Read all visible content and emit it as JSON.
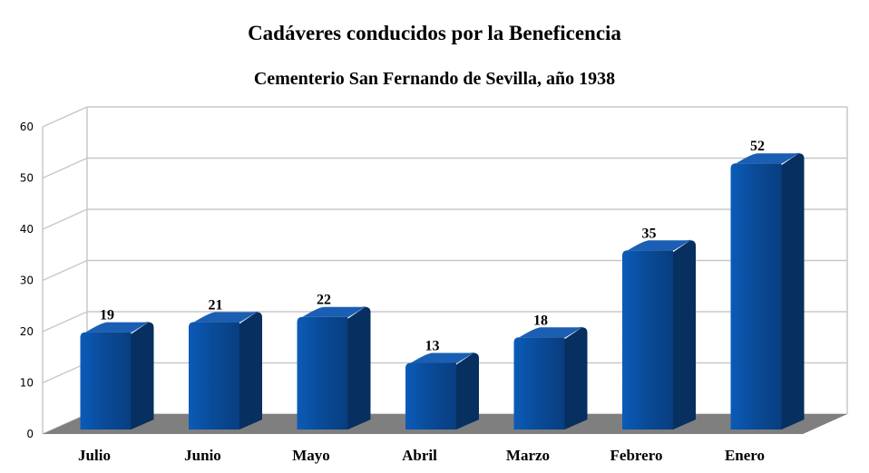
{
  "chart_data": {
    "type": "bar",
    "title": "Cadáveres conducidos por la Beneficencia",
    "subtitle": "Cementerio San Fernando de Sevilla, año 1938",
    "categories": [
      "Julio",
      "Junio",
      "Mayo",
      "Abril",
      "Marzo",
      "Febrero",
      "Enero"
    ],
    "values": [
      19,
      21,
      22,
      13,
      18,
      35,
      52
    ],
    "y_ticks": [
      "0",
      "10",
      "20",
      "30",
      "40",
      "50",
      "60"
    ],
    "ylim": [
      0,
      60
    ],
    "grid": true,
    "legend": "none",
    "colors": {
      "bar_front": "#0a4a97",
      "bar_side": "#072f5f",
      "bar_top": "#1a5fb4",
      "floor": "#7f7f7f",
      "grid": "#c8c8c8"
    }
  }
}
